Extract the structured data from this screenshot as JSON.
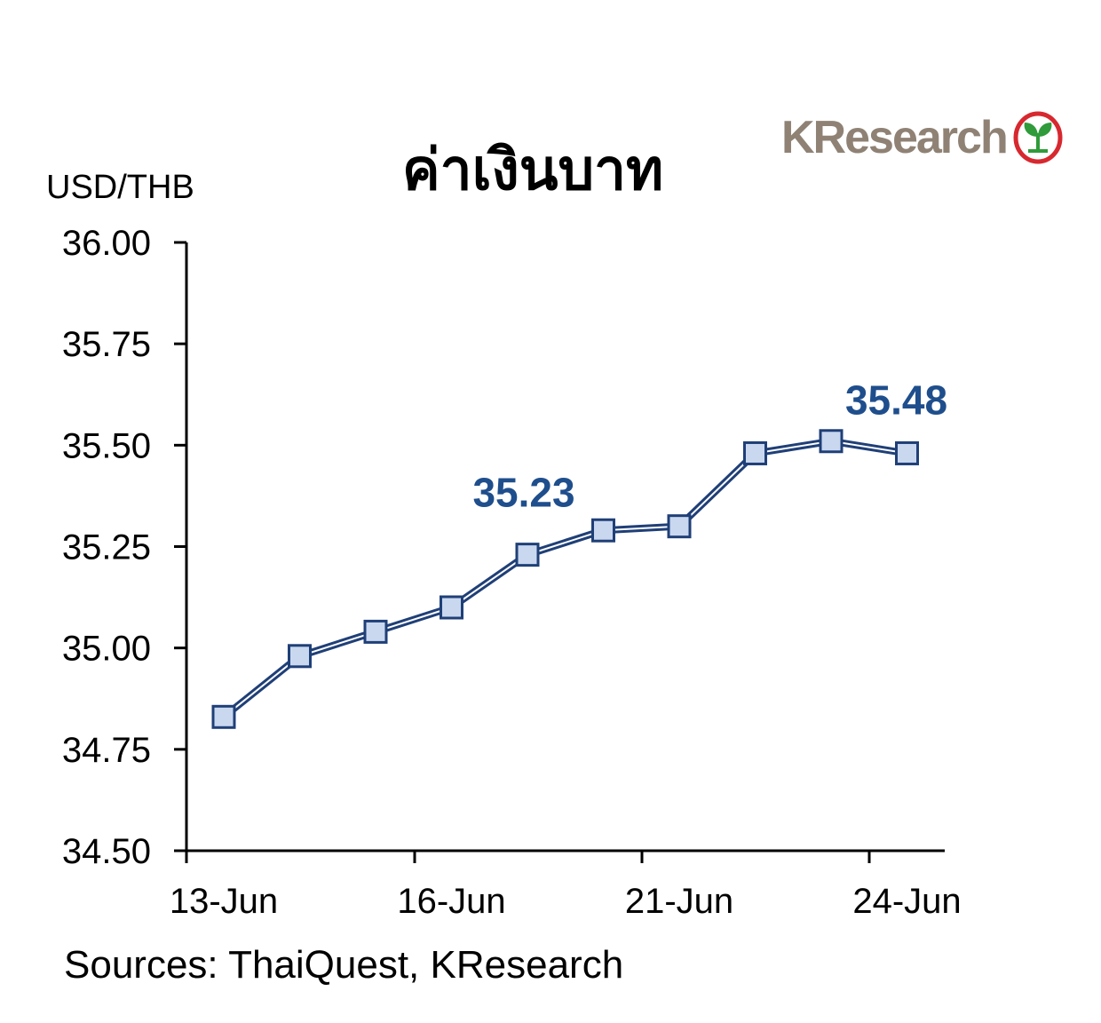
{
  "header": {
    "title": "ค่าเงินบาท",
    "brand": "KResearch",
    "brand_icon": "leaf-circle-logo",
    "brand_color": "#8f8275",
    "brand_accent": "#d7282f",
    "brand_leaf": "#2f9b3a"
  },
  "footer": {
    "sources": "Sources: ThaiQuest, KResearch"
  },
  "chart_data": {
    "type": "line",
    "title": "ค่าเงินบาท",
    "ylabel": "USD/THB",
    "xlabel": "",
    "ylim": [
      34.5,
      36.0
    ],
    "yticks": [
      "36.00",
      "35.75",
      "35.50",
      "35.25",
      "35.00",
      "34.75",
      "34.50"
    ],
    "ytick_values": [
      36.0,
      35.75,
      35.5,
      35.25,
      35.0,
      34.75,
      34.5
    ],
    "xtick_labels": [
      "13-Jun",
      "16-Jun",
      "21-Jun",
      "24-Jun"
    ],
    "xtick_label_index": [
      0,
      3,
      6,
      9
    ],
    "grid": false,
    "line_color": "#1f3f77",
    "marker_color": "#c9d8ef",
    "label_color": "#1f4e8c",
    "series": [
      {
        "values": [
          34.83,
          34.98,
          35.04,
          35.1,
          35.23,
          35.29,
          35.3,
          35.48,
          35.51,
          35.48
        ]
      }
    ],
    "annotations": [
      {
        "index": 4,
        "text": "35.23"
      },
      {
        "index": 9,
        "text": "35.48"
      }
    ]
  }
}
